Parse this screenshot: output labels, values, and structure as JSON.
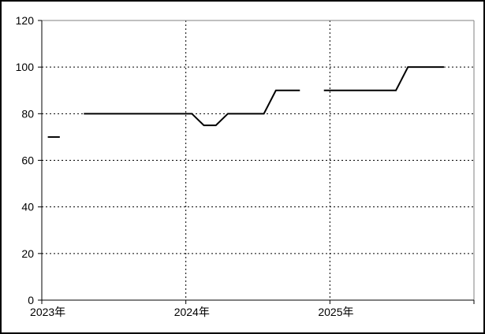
{
  "window": {
    "background": "#ffffff",
    "outer_border_color": "#000000"
  },
  "colors": {
    "series_line": "#000000",
    "gridline": "#000000",
    "axis": "#000000",
    "plot_border_gray": "#808080",
    "label_text": "#000000"
  },
  "chart_data": {
    "type": "line",
    "title": "",
    "legend": "none",
    "grid": "dashed",
    "markers": false,
    "x_axis": {
      "unit": "month",
      "start": "2023-01",
      "end": "2025-12",
      "tick_labels": [
        {
          "label": "2023年",
          "month_index": 0
        },
        {
          "label": "2024年",
          "month_index": 12
        },
        {
          "label": "2025年",
          "month_index": 24
        }
      ],
      "gridline_month_indices": [
        12,
        24
      ],
      "tick_month_indices": [
        0,
        12,
        24,
        36
      ]
    },
    "y_axis": {
      "min": 0,
      "max": 120,
      "step": 20,
      "tick_labels": [
        "0",
        "20",
        "40",
        "60",
        "80",
        "100",
        "120"
      ]
    },
    "series": [
      {
        "name": "",
        "values": [
          70,
          70,
          null,
          80,
          80,
          80,
          80,
          80,
          80,
          80,
          80,
          80,
          80,
          75,
          75,
          80,
          80,
          80,
          80,
          90,
          90,
          90,
          null,
          90,
          90,
          90,
          90,
          90,
          90,
          90,
          100,
          100,
          100,
          100,
          null,
          null
        ]
      }
    ]
  }
}
